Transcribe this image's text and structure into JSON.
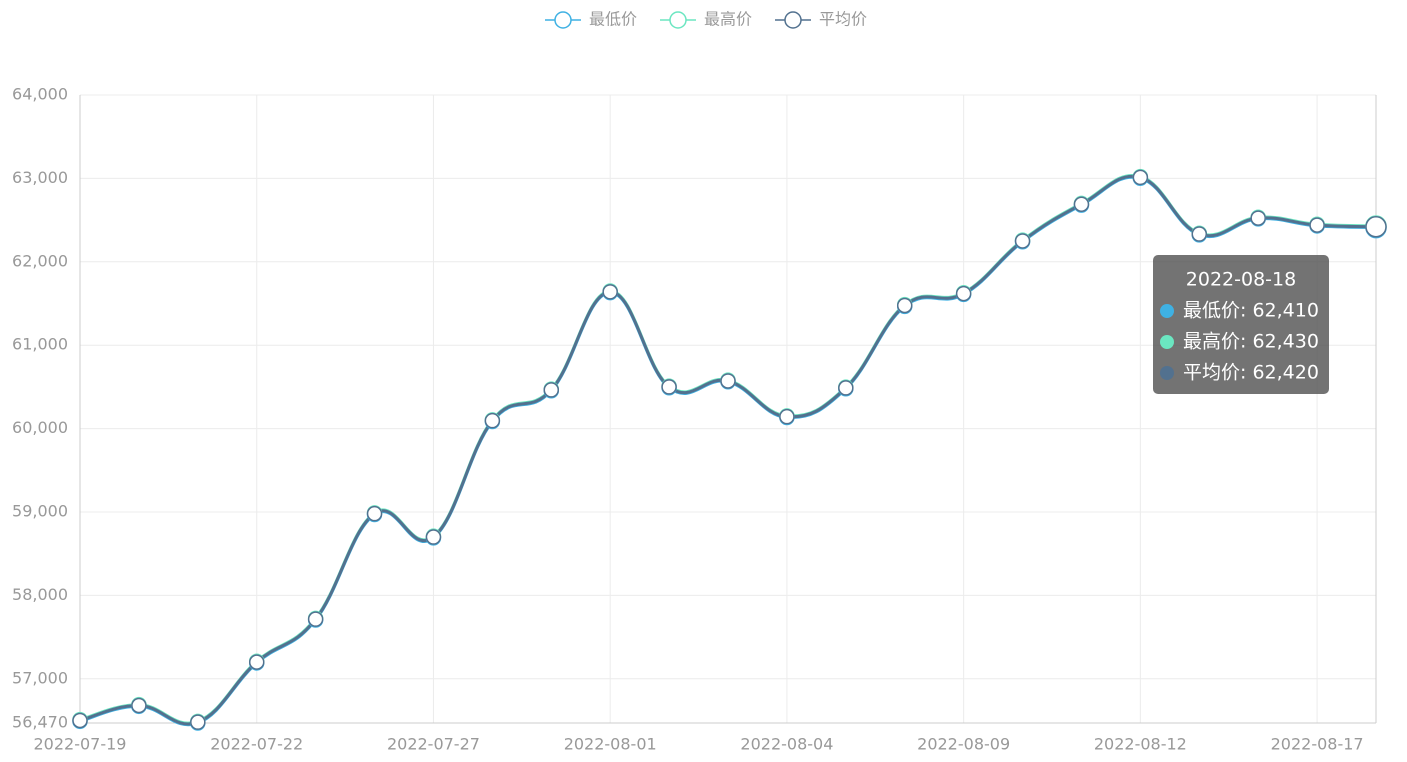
{
  "chart_data": {
    "type": "line",
    "categories": [
      "2022-07-19",
      null,
      null,
      "2022-07-22",
      null,
      null,
      "2022-07-27",
      null,
      null,
      "2022-08-01",
      null,
      null,
      "2022-08-04",
      null,
      null,
      "2022-08-09",
      null,
      null,
      "2022-08-12",
      null,
      null,
      "2022-08-17",
      null
    ],
    "series": [
      {
        "name": "最低价",
        "color": "#3fb1e3",
        "values": [
          56490,
          56670,
          56470,
          57190,
          57705,
          58970,
          58690,
          60085,
          60454,
          61630,
          60490,
          60561,
          60133,
          60478,
          61466,
          61609,
          62240,
          62680,
          63002,
          62323,
          62514,
          62430,
          62410
        ]
      },
      {
        "name": "最高价",
        "color": "#6be6c1",
        "values": [
          56510,
          56690,
          56490,
          57210,
          57725,
          58990,
          58710,
          60105,
          60474,
          61650,
          60510,
          60581,
          60153,
          60498,
          61486,
          61629,
          62260,
          62700,
          63022,
          62343,
          62534,
          62450,
          62430
        ]
      },
      {
        "name": "平均价",
        "color": "#52718f",
        "values": [
          56500,
          56680,
          56480,
          57200,
          57715,
          58980,
          58700,
          60095,
          60464,
          61640,
          60500,
          60571,
          60143,
          60488,
          61476,
          61619,
          62250,
          62690,
          63012,
          62333,
          62524,
          62440,
          62420
        ]
      }
    ],
    "ylim": [
      56470,
      64000
    ],
    "yticks": [
      {
        "value": 56470,
        "label": "56,470"
      },
      {
        "value": 57000,
        "label": "57,000"
      },
      {
        "value": 58000,
        "label": "58,000"
      },
      {
        "value": 59000,
        "label": "59,000"
      },
      {
        "value": 60000,
        "label": "60,000"
      },
      {
        "value": 61000,
        "label": "61,000"
      },
      {
        "value": 62000,
        "label": "62,000"
      },
      {
        "value": 63000,
        "label": "63,000"
      },
      {
        "value": 64000,
        "label": "64,000"
      }
    ],
    "grid": true,
    "legend": "top",
    "tooltip": {
      "title": "2022-08-18",
      "items": [
        "最低价: 62,410",
        "最高价: 62,430",
        "平均价: 62,420"
      ]
    }
  }
}
